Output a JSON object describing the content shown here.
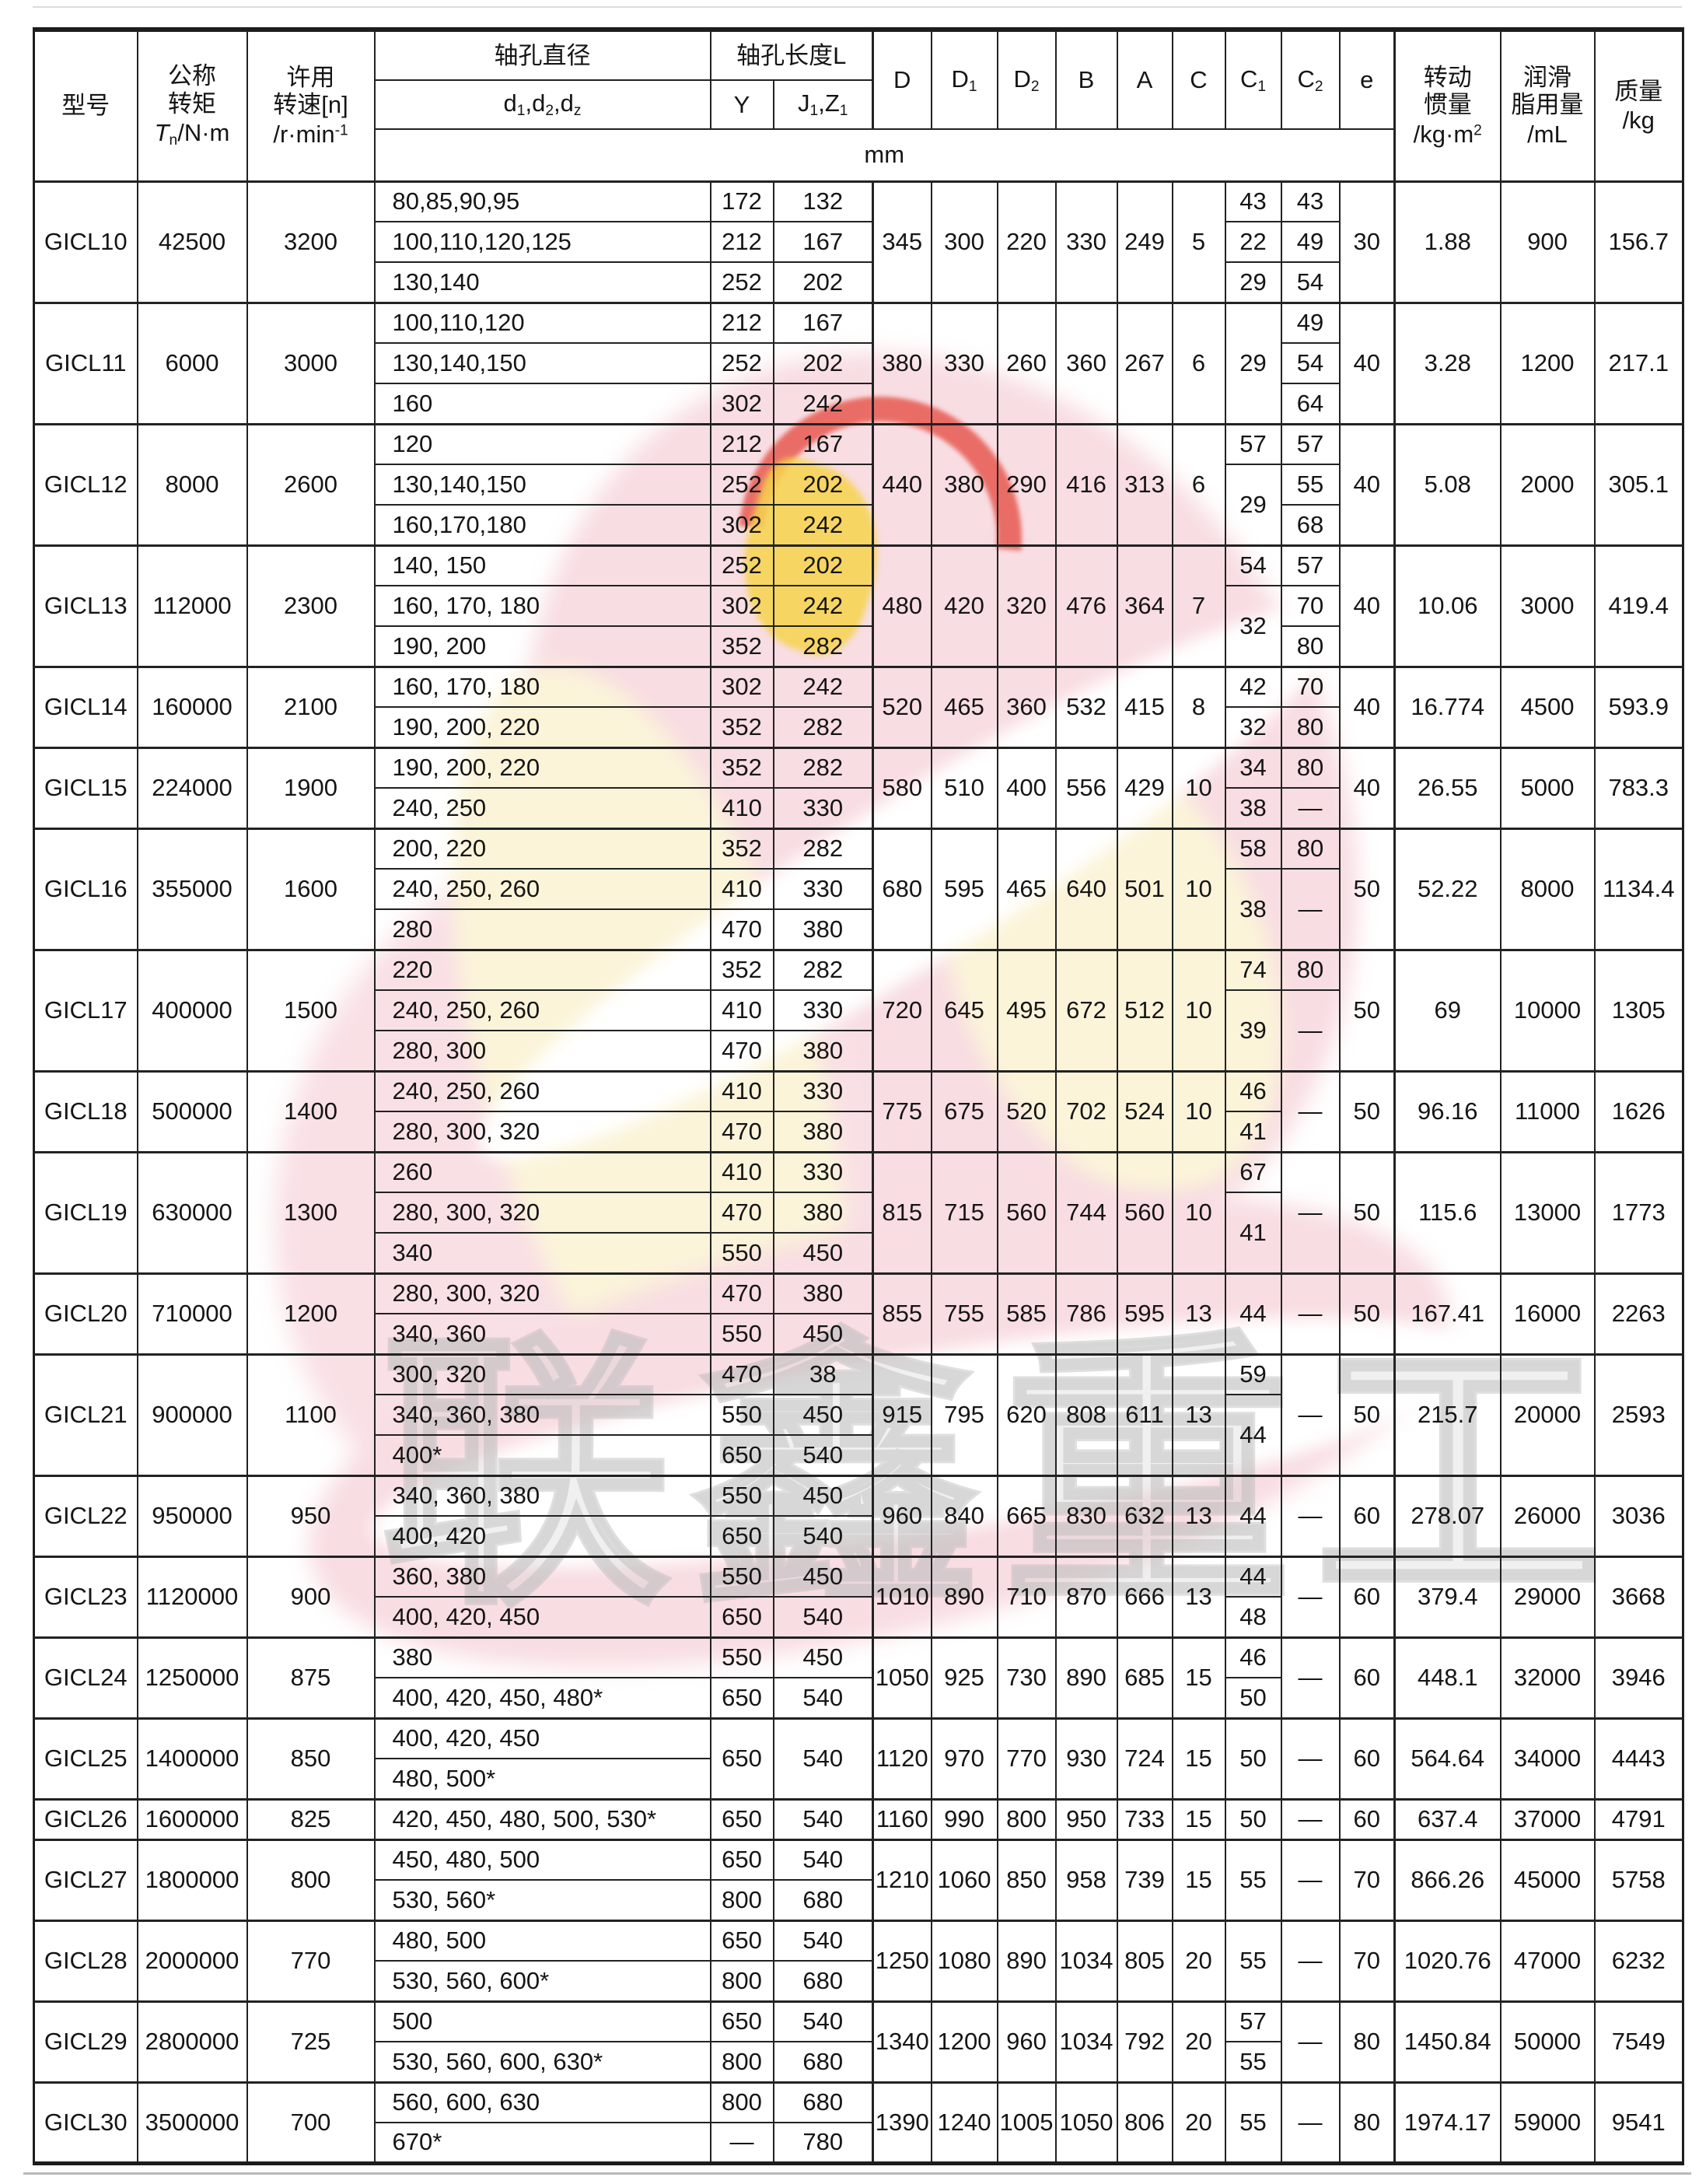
{
  "watermark": {
    "text": "联鑫重工",
    "colors": {
      "pink": "#f8dde2",
      "cream": "#fbf4d9",
      "red": "#e5493c",
      "yellow": "#f6d44c",
      "gray_text": "#cccccc"
    }
  },
  "header": {
    "model": "型号",
    "torque": {
      "l1": "公称",
      "l2": "转矩",
      "unit": "<i>T</i><sub>n</sub>/N·m"
    },
    "speed": {
      "l1": "许用",
      "l2": "转速[n]",
      "unit": "/r·min<sup>-1</sup>"
    },
    "bore_dia": {
      "title": "轴孔直径",
      "sub": "d<sub>1</sub>,d<sub>2</sub>,d<sub>z</sub>"
    },
    "bore_len": {
      "title": "轴孔长度L",
      "y": "Y",
      "jz": "J<sub>1</sub>,Z<sub>1</sub>"
    },
    "dims": [
      "D",
      "D<sub>1</sub>",
      "D<sub>2</sub>",
      "B",
      "A",
      "C",
      "C<sub>1</sub>",
      "C<sub>2</sub>",
      "e"
    ],
    "unit_row": "mm",
    "inertia": {
      "l1": "转动",
      "l2": "惯量",
      "unit": "/kg·m<sup>2</sup>"
    },
    "grease": {
      "l1": "润滑",
      "l2": "脂用量",
      "unit": "/mL"
    },
    "mass": {
      "l1": "质量",
      "unit": "/kg"
    }
  },
  "groups": [
    {
      "model": "GICL10",
      "torque": "42500",
      "speed": "3200",
      "rows": [
        {
          "d": "80,85,90,95",
          "y": "172",
          "jz": "132"
        },
        {
          "d": "100,110,120,125",
          "y": "212",
          "jz": "167"
        },
        {
          "d": "130,140",
          "y": "252",
          "jz": "202"
        }
      ],
      "dims": [
        "345",
        "300",
        "220",
        "330",
        "249",
        "5"
      ],
      "c1": [
        [
          "43",
          1
        ],
        [
          "22",
          1
        ],
        [
          "29",
          1
        ]
      ],
      "c2": [
        [
          "43",
          1
        ],
        [
          "49",
          1
        ],
        [
          "54",
          1
        ]
      ],
      "e": "30",
      "inertia": "1.88",
      "grease": "900",
      "mass": "156.7"
    },
    {
      "model": "GICL11",
      "torque": "6000",
      "speed": "3000",
      "rows": [
        {
          "d": "100,110,120",
          "y": "212",
          "jz": "167"
        },
        {
          "d": "130,140,150",
          "y": "252",
          "jz": "202"
        },
        {
          "d": "160",
          "y": "302",
          "jz": "242"
        }
      ],
      "dims": [
        "380",
        "330",
        "260",
        "360",
        "267",
        "6"
      ],
      "c1": [
        [
          "29",
          3
        ]
      ],
      "c2": [
        [
          "49",
          1
        ],
        [
          "54",
          1
        ],
        [
          "64",
          1
        ]
      ],
      "e": "40",
      "inertia": "3.28",
      "grease": "1200",
      "mass": "217.1"
    },
    {
      "model": "GICL12",
      "torque": "8000",
      "speed": "2600",
      "rows": [
        {
          "d": "120",
          "y": "212",
          "jz": "167"
        },
        {
          "d": "130,140,150",
          "y": "252",
          "jz": "202"
        },
        {
          "d": "160,170,180",
          "y": "302",
          "jz": "242"
        }
      ],
      "dims": [
        "440",
        "380",
        "290",
        "416",
        "313",
        "6"
      ],
      "c1": [
        [
          "57",
          1
        ],
        [
          "29",
          2
        ]
      ],
      "c2": [
        [
          "57",
          1
        ],
        [
          "55",
          1
        ],
        [
          "68",
          1
        ]
      ],
      "e": "40",
      "inertia": "5.08",
      "grease": "2000",
      "mass": "305.1"
    },
    {
      "model": "GICL13",
      "torque": "112000",
      "speed": "2300",
      "rows": [
        {
          "d": "140, 150",
          "y": "252",
          "jz": "202"
        },
        {
          "d": "160, 170, 180",
          "y": "302",
          "jz": "242"
        },
        {
          "d": "190, 200",
          "y": "352",
          "jz": "282"
        }
      ],
      "dims": [
        "480",
        "420",
        "320",
        "476",
        "364",
        "7"
      ],
      "c1": [
        [
          "54",
          1
        ],
        [
          "32",
          2
        ]
      ],
      "c2": [
        [
          "57",
          1
        ],
        [
          "70",
          1
        ],
        [
          "80",
          1
        ]
      ],
      "e": "40",
      "inertia": "10.06",
      "grease": "3000",
      "mass": "419.4"
    },
    {
      "model": "GICL14",
      "torque": "160000",
      "speed": "2100",
      "rows": [
        {
          "d": "160, 170, 180",
          "y": "302",
          "jz": "242"
        },
        {
          "d": "190, 200, 220",
          "y": "352",
          "jz": "282"
        }
      ],
      "dims": [
        "520",
        "465",
        "360",
        "532",
        "415",
        "8"
      ],
      "c1": [
        [
          "42",
          1
        ],
        [
          "32",
          1
        ]
      ],
      "c2": [
        [
          "70",
          1
        ],
        [
          "80",
          1
        ]
      ],
      "e": "40",
      "inertia": "16.774",
      "grease": "4500",
      "mass": "593.9"
    },
    {
      "model": "GICL15",
      "torque": "224000",
      "speed": "1900",
      "rows": [
        {
          "d": "190, 200, 220",
          "y": "352",
          "jz": "282"
        },
        {
          "d": "240, 250",
          "y": "410",
          "jz": "330"
        }
      ],
      "dims": [
        "580",
        "510",
        "400",
        "556",
        "429",
        "10"
      ],
      "c1": [
        [
          "34",
          1
        ],
        [
          "38",
          1
        ]
      ],
      "c2": [
        [
          "80",
          1
        ],
        [
          "—",
          1
        ]
      ],
      "e": "40",
      "inertia": "26.55",
      "grease": "5000",
      "mass": "783.3"
    },
    {
      "model": "GICL16",
      "torque": "355000",
      "speed": "1600",
      "rows": [
        {
          "d": "200, 220",
          "y": "352",
          "jz": "282"
        },
        {
          "d": "240, 250, 260",
          "y": "410",
          "jz": "330"
        },
        {
          "d": "280",
          "y": "470",
          "jz": "380"
        }
      ],
      "dims": [
        "680",
        "595",
        "465",
        "640",
        "501",
        "10"
      ],
      "c1": [
        [
          "58",
          1
        ],
        [
          "38",
          2
        ]
      ],
      "c2": [
        [
          "80",
          1
        ],
        [
          "—",
          2
        ]
      ],
      "e": "50",
      "inertia": "52.22",
      "grease": "8000",
      "mass": "1134.4"
    },
    {
      "model": "GICL17",
      "torque": "400000",
      "speed": "1500",
      "rows": [
        {
          "d": "220",
          "y": "352",
          "jz": "282"
        },
        {
          "d": "240, 250, 260",
          "y": "410",
          "jz": "330"
        },
        {
          "d": "280, 300",
          "y": "470",
          "jz": "380"
        }
      ],
      "dims": [
        "720",
        "645",
        "495",
        "672",
        "512",
        "10"
      ],
      "c1": [
        [
          "74",
          1
        ],
        [
          "39",
          2
        ]
      ],
      "c2": [
        [
          "80",
          1
        ],
        [
          "—",
          2
        ]
      ],
      "e": "50",
      "inertia": "69",
      "grease": "10000",
      "mass": "1305"
    },
    {
      "model": "GICL18",
      "torque": "500000",
      "speed": "1400",
      "rows": [
        {
          "d": "240, 250, 260",
          "y": "410",
          "jz": "330"
        },
        {
          "d": "280, 300, 320",
          "y": "470",
          "jz": "380"
        }
      ],
      "dims": [
        "775",
        "675",
        "520",
        "702",
        "524",
        "10"
      ],
      "c1": [
        [
          "46",
          1
        ],
        [
          "41",
          1
        ]
      ],
      "c2": [
        [
          "—",
          2
        ]
      ],
      "e": "50",
      "inertia": "96.16",
      "grease": "11000",
      "mass": "1626"
    },
    {
      "model": "GICL19",
      "torque": "630000",
      "speed": "1300",
      "rows": [
        {
          "d": "260",
          "y": "410",
          "jz": "330"
        },
        {
          "d": "280, 300, 320",
          "y": "470",
          "jz": "380"
        },
        {
          "d": "340",
          "y": "550",
          "jz": "450"
        }
      ],
      "dims": [
        "815",
        "715",
        "560",
        "744",
        "560",
        "10"
      ],
      "c1": [
        [
          "67",
          1
        ],
        [
          "41",
          2
        ]
      ],
      "c2": [
        [
          "—",
          3
        ]
      ],
      "e": "50",
      "inertia": "115.6",
      "grease": "13000",
      "mass": "1773"
    },
    {
      "model": "GICL20",
      "torque": "710000",
      "speed": "1200",
      "rows": [
        {
          "d": "280, 300, 320",
          "y": "470",
          "jz": "380"
        },
        {
          "d": "340, 360",
          "y": "550",
          "jz": "450"
        }
      ],
      "dims": [
        "855",
        "755",
        "585",
        "786",
        "595",
        "13"
      ],
      "c1": [
        [
          "44",
          2
        ]
      ],
      "c2": [
        [
          "—",
          2
        ]
      ],
      "e": "50",
      "inertia": "167.41",
      "grease": "16000",
      "mass": "2263"
    },
    {
      "model": "GICL21",
      "torque": "900000",
      "speed": "1100",
      "rows": [
        {
          "d": "300, 320",
          "y": "470",
          "jz": "38"
        },
        {
          "d": "340, 360, 380",
          "y": "550",
          "jz": "450"
        },
        {
          "d": "400*",
          "y": "650",
          "jz": "540"
        }
      ],
      "dims": [
        "915",
        "795",
        "620",
        "808",
        "611",
        "13"
      ],
      "c1": [
        [
          "59",
          1
        ],
        [
          "44",
          2
        ]
      ],
      "c2": [
        [
          "—",
          3
        ]
      ],
      "e": "50",
      "inertia": "215.7",
      "grease": "20000",
      "mass": "2593"
    },
    {
      "model": "GICL22",
      "torque": "950000",
      "speed": "950",
      "rows": [
        {
          "d": "340, 360, 380",
          "y": "550",
          "jz": "450"
        },
        {
          "d": "400, 420",
          "y": "650",
          "jz": "540"
        }
      ],
      "dims": [
        "960",
        "840",
        "665",
        "830",
        "632",
        "13"
      ],
      "c1": [
        [
          "44",
          2
        ]
      ],
      "c2": [
        [
          "—",
          2
        ]
      ],
      "e": "60",
      "inertia": "278.07",
      "grease": "26000",
      "mass": "3036"
    },
    {
      "model": "GICL23",
      "torque": "1120000",
      "speed": "900",
      "rows": [
        {
          "d": "360, 380",
          "y": "550",
          "jz": "450"
        },
        {
          "d": "400, 420, 450",
          "y": "650",
          "jz": "540"
        }
      ],
      "dims": [
        "1010",
        "890",
        "710",
        "870",
        "666",
        "13"
      ],
      "c1": [
        [
          "44",
          1
        ],
        [
          "48",
          1
        ]
      ],
      "c2": [
        [
          "—",
          2
        ]
      ],
      "e": "60",
      "inertia": "379.4",
      "grease": "29000",
      "mass": "3668"
    },
    {
      "model": "GICL24",
      "torque": "1250000",
      "speed": "875",
      "rows": [
        {
          "d": "380",
          "y": "550",
          "jz": "450"
        },
        {
          "d": "400, 420, 450, 480*",
          "y": "650",
          "jz": "540"
        }
      ],
      "dims": [
        "1050",
        "925",
        "730",
        "890",
        "685",
        "15"
      ],
      "c1": [
        [
          "46",
          1
        ],
        [
          "50",
          1
        ]
      ],
      "c2": [
        [
          "—",
          2
        ]
      ],
      "e": "60",
      "inertia": "448.1",
      "grease": "32000",
      "mass": "3946"
    },
    {
      "model": "GICL25",
      "torque": "1400000",
      "speed": "850",
      "rows": [
        {
          "d": "400, 420, 450",
          "y": "650",
          "yspan": 2,
          "jz": "540",
          "jzspan": 2
        },
        {
          "d": "480, 500*"
        }
      ],
      "dims": [
        "1120",
        "970",
        "770",
        "930",
        "724",
        "15"
      ],
      "c1": [
        [
          "50",
          2
        ]
      ],
      "c2": [
        [
          "—",
          2
        ]
      ],
      "e": "60",
      "inertia": "564.64",
      "grease": "34000",
      "mass": "4443"
    },
    {
      "model": "GICL26",
      "torque": "1600000",
      "speed": "825",
      "rows": [
        {
          "d": "420, 450, 480, 500, 530*",
          "y": "650",
          "jz": "540"
        }
      ],
      "dims": [
        "1160",
        "990",
        "800",
        "950",
        "733",
        "15"
      ],
      "c1": [
        [
          "50",
          1
        ]
      ],
      "c2": [
        [
          "—",
          1
        ]
      ],
      "e": "60",
      "inertia": "637.4",
      "grease": "37000",
      "mass": "4791"
    },
    {
      "model": "GICL27",
      "torque": "1800000",
      "speed": "800",
      "rows": [
        {
          "d": "450, 480, 500",
          "y": "650",
          "jz": "540"
        },
        {
          "d": "530, 560*",
          "y": "800",
          "jz": "680"
        }
      ],
      "dims": [
        "1210",
        "1060",
        "850",
        "958",
        "739",
        "15"
      ],
      "c1": [
        [
          "55",
          2
        ]
      ],
      "c2": [
        [
          "—",
          2
        ]
      ],
      "e": "70",
      "inertia": "866.26",
      "grease": "45000",
      "mass": "5758"
    },
    {
      "model": "GICL28",
      "torque": "2000000",
      "speed": "770",
      "rows": [
        {
          "d": "480, 500",
          "y": "650",
          "jz": "540"
        },
        {
          "d": "530, 560, 600*",
          "y": "800",
          "jz": "680"
        }
      ],
      "dims": [
        "1250",
        "1080",
        "890",
        "1034",
        "805",
        "20"
      ],
      "c1": [
        [
          "55",
          2
        ]
      ],
      "c2": [
        [
          "—",
          2
        ]
      ],
      "e": "70",
      "inertia": "1020.76",
      "grease": "47000",
      "mass": "6232"
    },
    {
      "model": "GICL29",
      "torque": "2800000",
      "speed": "725",
      "rows": [
        {
          "d": "500",
          "y": "650",
          "jz": "540"
        },
        {
          "d": "530, 560, 600, 630*",
          "y": "800",
          "jz": "680"
        }
      ],
      "dims": [
        "1340",
        "1200",
        "960",
        "1034",
        "792",
        "20"
      ],
      "c1": [
        [
          "57",
          1
        ],
        [
          "55",
          1
        ]
      ],
      "c2": [
        [
          "—",
          2
        ]
      ],
      "e": "80",
      "inertia": "1450.84",
      "grease": "50000",
      "mass": "7549"
    },
    {
      "model": "GICL30",
      "torque": "3500000",
      "speed": "700",
      "rows": [
        {
          "d": "560, 600, 630",
          "y": "800",
          "jz": "680"
        },
        {
          "d": "670*",
          "y": "—",
          "jz": "780"
        }
      ],
      "dims": [
        "1390",
        "1240",
        "1005",
        "1050",
        "806",
        "20"
      ],
      "c1": [
        [
          "55",
          2
        ]
      ],
      "c2": [
        [
          "—",
          2
        ]
      ],
      "e": "80",
      "inertia": "1974.17",
      "grease": "59000",
      "mass": "9541"
    }
  ]
}
